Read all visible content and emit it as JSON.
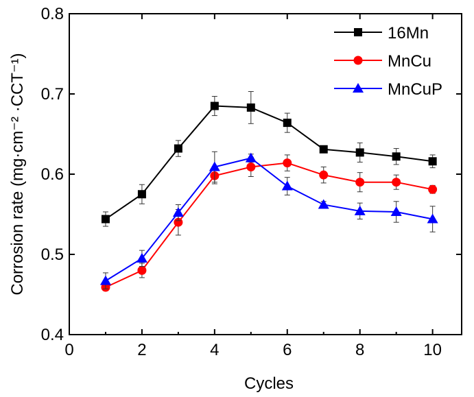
{
  "chart_data": {
    "type": "line",
    "title": "",
    "xlabel": "Cycles",
    "ylabel": "Corrosion rate (mg·cm⁻² ·CCT⁻¹)",
    "ylabel_parts": [
      "Corrosion rate (mg·cm",
      "-2",
      " ·CCT",
      "-1",
      ")"
    ],
    "xlim": [
      0,
      10.8
    ],
    "ylim": [
      0.4,
      0.8
    ],
    "xticks": [
      0,
      2,
      4,
      6,
      8,
      10
    ],
    "xtick_labels": [
      "0",
      "2",
      "4",
      "6",
      "8",
      "10"
    ],
    "yticks": [
      0.4,
      0.5,
      0.6,
      0.7,
      0.8
    ],
    "ytick_labels": [
      "0.4",
      "0.5",
      "0.6",
      "0.7",
      "0.8"
    ],
    "grid": false,
    "legend_position": "top-right",
    "x": [
      1,
      2,
      3,
      4,
      5,
      6,
      7,
      8,
      9,
      10
    ],
    "series": [
      {
        "name": "16Mn",
        "color": "#000000",
        "marker": "square",
        "values": [
          0.544,
          0.575,
          0.632,
          0.685,
          0.683,
          0.664,
          0.631,
          0.627,
          0.622,
          0.616
        ],
        "errors": [
          0.009,
          0.012,
          0.01,
          0.012,
          0.02,
          0.012,
          0.004,
          0.012,
          0.01,
          0.008
        ]
      },
      {
        "name": "MnCu",
        "color": "#ff0000",
        "marker": "circle",
        "values": [
          0.459,
          0.48,
          0.54,
          0.598,
          0.609,
          0.614,
          0.599,
          0.59,
          0.59,
          0.581
        ],
        "errors": [
          0.003,
          0.009,
          0.016,
          0.01,
          0.012,
          0.01,
          0.01,
          0.012,
          0.009,
          0.005
        ]
      },
      {
        "name": "MnCuP",
        "color": "#0000ff",
        "marker": "triangle",
        "values": [
          0.467,
          0.495,
          0.552,
          0.609,
          0.62,
          0.585,
          0.562,
          0.554,
          0.553,
          0.544
        ],
        "errors": [
          0.01,
          0.01,
          0.01,
          0.019,
          0.005,
          0.011,
          0.004,
          0.01,
          0.013,
          0.016
        ]
      }
    ]
  }
}
